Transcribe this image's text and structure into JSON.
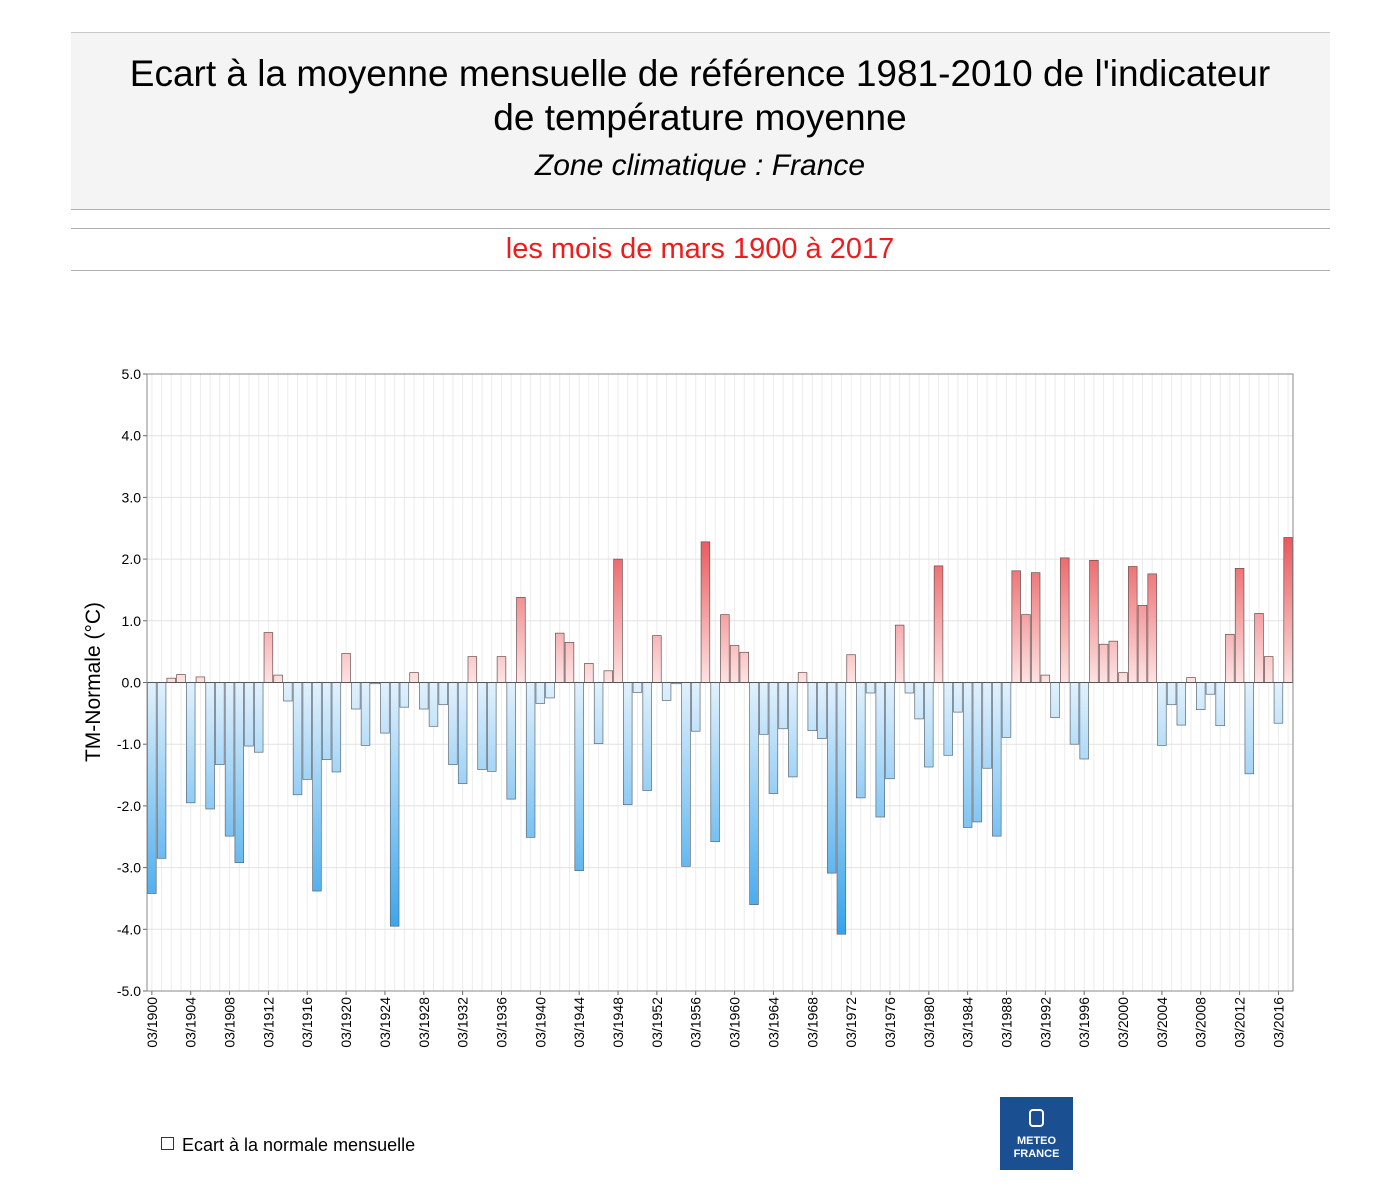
{
  "chart_data": {
    "type": "bar",
    "title": [
      "Ecart à la moyenne mensuelle de référence 1981-2010 de l'indicateur",
      "de température moyenne"
    ],
    "subtitle": "Zone climatique : France",
    "period": "les mois de mars 1900 à 2017",
    "y_label": "TM-Normale (°C)",
    "legend": "Ecart à la normale mensuelle",
    "logo": [
      "METEO",
      "FRANCE"
    ],
    "colors": {
      "positive": "#e8464a",
      "negative": "#36a3ec"
    },
    "grid": true,
    "ylim": [
      -5,
      5
    ],
    "yticks": [
      {
        "value": 5,
        "label": "5.0"
      },
      {
        "value": 4,
        "label": "4.0"
      },
      {
        "value": 3,
        "label": "3.0"
      },
      {
        "value": 2,
        "label": "2.0"
      },
      {
        "value": 1,
        "label": "1.0"
      },
      {
        "value": 0,
        "label": "0.0"
      },
      {
        "value": -1,
        "label": "-1.0"
      },
      {
        "value": -2,
        "label": "-2.0"
      },
      {
        "value": -3,
        "label": "-3.0"
      },
      {
        "value": -4,
        "label": "-4.0"
      },
      {
        "value": -5,
        "label": "-5.0"
      }
    ],
    "categories": [
      "03/1900",
      null,
      null,
      null,
      "03/1904",
      null,
      null,
      null,
      "03/1908",
      null,
      null,
      null,
      "03/1912",
      null,
      null,
      null,
      "03/1916",
      null,
      null,
      null,
      "03/1920",
      null,
      null,
      null,
      "03/1924",
      null,
      null,
      null,
      "03/1928",
      null,
      null,
      null,
      "03/1932",
      null,
      null,
      null,
      "03/1936",
      null,
      null,
      null,
      "03/1940",
      null,
      null,
      null,
      "03/1944",
      null,
      null,
      null,
      "03/1948",
      null,
      null,
      null,
      "03/1952",
      null,
      null,
      null,
      "03/1956",
      null,
      null,
      null,
      "03/1960",
      null,
      null,
      null,
      "03/1964",
      null,
      null,
      null,
      "03/1968",
      null,
      null,
      null,
      "03/1972",
      null,
      null,
      null,
      "03/1976",
      null,
      null,
      null,
      "03/1980",
      null,
      null,
      null,
      "03/1984",
      null,
      null,
      null,
      "03/1988",
      null,
      null,
      null,
      "03/1992",
      null,
      null,
      null,
      "03/1996",
      null,
      null,
      null,
      "03/2000",
      null,
      null,
      null,
      "03/2004",
      null,
      null,
      null,
      "03/2008",
      null,
      null,
      null,
      "03/2012",
      null,
      null,
      null,
      "03/2016",
      null
    ],
    "values": [
      -3.42,
      -2.85,
      0.07,
      0.13,
      -1.95,
      0.09,
      -2.05,
      -1.33,
      -2.49,
      -2.92,
      -1.03,
      -1.13,
      0.81,
      0.12,
      -0.3,
      -1.82,
      -1.57,
      -3.38,
      -1.25,
      -1.45,
      0.47,
      -0.43,
      -1.02,
      -0.02,
      -0.82,
      -3.95,
      -0.4,
      0.16,
      -0.43,
      -0.71,
      -0.36,
      -1.33,
      -1.64,
      0.42,
      -1.41,
      -1.44,
      0.42,
      -1.89,
      1.38,
      -2.51,
      -0.34,
      -0.25,
      0.8,
      0.65,
      -3.05,
      0.31,
      -0.99,
      0.19,
      2.0,
      -1.98,
      -0.16,
      -1.75,
      0.76,
      -0.29,
      -0.02,
      -2.98,
      -0.79,
      2.28,
      -2.58,
      1.1,
      0.6,
      0.49,
      -3.6,
      -0.84,
      -1.8,
      -0.75,
      -1.53,
      0.16,
      -0.78,
      -0.91,
      -3.09,
      -4.08,
      0.45,
      -1.87,
      -0.17,
      -2.18,
      -1.56,
      0.93,
      -0.17,
      -0.59,
      -1.37,
      1.89,
      -1.18,
      -0.48,
      -2.35,
      -2.26,
      -1.39,
      -2.49,
      -0.89,
      1.81,
      1.1,
      1.78,
      0.12,
      -0.57,
      2.02,
      -1.0,
      -1.24,
      1.98,
      0.62,
      0.67,
      0.16,
      1.88,
      1.25,
      1.76,
      -1.02,
      -0.36,
      -0.69,
      0.08,
      -0.44,
      -0.19,
      -0.7,
      0.78,
      1.85,
      -1.48,
      1.12,
      0.42,
      -0.66,
      2.35
    ]
  }
}
